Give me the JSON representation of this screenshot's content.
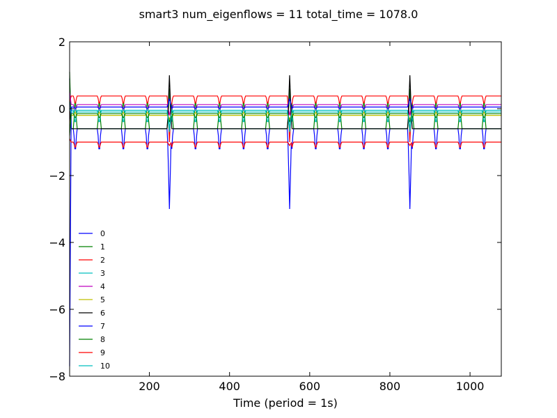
{
  "chart_data": {
    "type": "line",
    "title": "smart3 num_eigenflows = 11 total_time = 1078.0",
    "xlabel": "Time (period = 1s)",
    "ylabel": "",
    "xlim": [
      1,
      1078
    ],
    "ylim": [
      -8,
      2
    ],
    "x_ticks": [
      200,
      400,
      600,
      800,
      1000
    ],
    "x_tick_labels": [
      "200",
      "400",
      "600",
      "800",
      "1000"
    ],
    "y_ticks": [
      -8,
      -6,
      -4,
      -2,
      0,
      2
    ],
    "y_tick_labels": [
      "−8",
      "−6",
      "−4",
      "−2",
      "0",
      "2"
    ],
    "grid": false,
    "legend_position": "lower-left",
    "spike_period": 60,
    "big_spike_times": [
      250,
      550,
      850
    ],
    "series": [
      {
        "name": "0",
        "color": "#0000ff",
        "base": -0.6,
        "spike": -1.4,
        "big": -3.0,
        "start": 0.9
      },
      {
        "name": "1",
        "color": "#008000",
        "base": -0.6,
        "spike": 0.45,
        "big": 0.6,
        "start": 1.1
      },
      {
        "name": "2",
        "color": "#ff0000",
        "base": 0.38,
        "spike": 0.1,
        "big": -1.0,
        "start": 0.2
      },
      {
        "name": "3",
        "color": "#00bfbf",
        "base": -0.05,
        "spike": -0.5,
        "big": -0.6,
        "start": -0.3
      },
      {
        "name": "4",
        "color": "#bf00bf",
        "base": 0.12,
        "spike": -0.1,
        "big": -0.2,
        "start": 0.5
      },
      {
        "name": "5",
        "color": "#bfbf00",
        "base": -0.2,
        "spike": -0.1,
        "big": -0.3,
        "start": -0.5
      },
      {
        "name": "6",
        "color": "#000000",
        "base": -0.6,
        "spike": -0.6,
        "big": 1.0,
        "start": 0.0
      },
      {
        "name": "7",
        "color": "#0000ff",
        "base": 0.05,
        "spike": 0.0,
        "big": 0.3,
        "start": -7.7
      },
      {
        "name": "8",
        "color": "#008000",
        "base": -0.15,
        "spike": -0.3,
        "big": -0.4,
        "start": -0.8
      },
      {
        "name": "9",
        "color": "#ff0000",
        "base": -1.0,
        "spike": -1.2,
        "big": -1.1,
        "start": -0.9
      },
      {
        "name": "10",
        "color": "#00bfbf",
        "base": -0.1,
        "spike": 0.0,
        "big": -0.7,
        "start": 0.0
      }
    ]
  }
}
